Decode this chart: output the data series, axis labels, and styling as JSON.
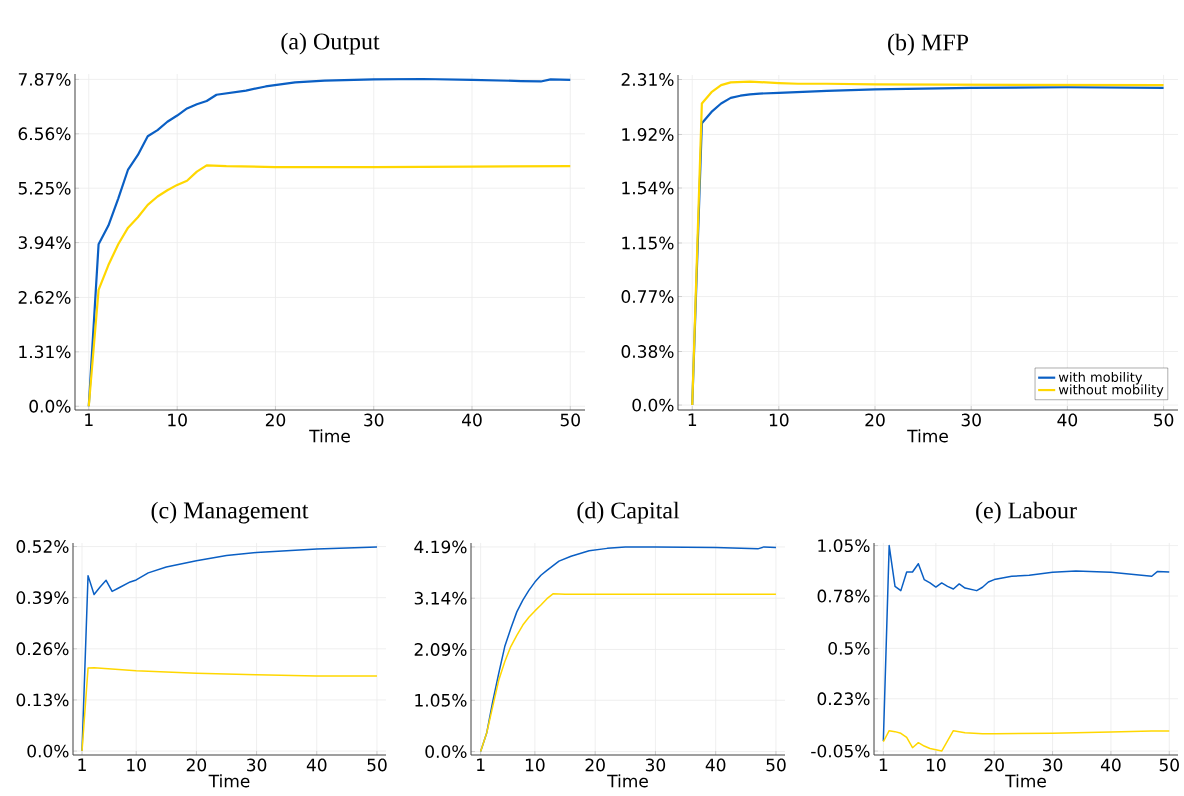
{
  "chart_data": [
    {
      "type": "line",
      "title": "(a) Output",
      "xlabel": "Time",
      "grid": true,
      "legend": false,
      "marker": "none",
      "xlim": [
        -0.4,
        51.5
      ],
      "xticks": [
        1,
        10,
        20,
        30,
        40,
        50
      ],
      "ylim": [
        -0.09,
        8.0
      ],
      "yticks": [
        {
          "value": 0,
          "label": "0.0%"
        },
        {
          "value": 1.31,
          "label": "1.31%"
        },
        {
          "value": 2.62,
          "label": "2.62%"
        },
        {
          "value": 3.94,
          "label": "3.94%"
        },
        {
          "value": 5.25,
          "label": "5.25%"
        },
        {
          "value": 6.56,
          "label": "6.56%"
        },
        {
          "value": 7.87,
          "label": "7.87%"
        }
      ],
      "series": [
        {
          "color": "#0a5fc4",
          "x": [
            1,
            2,
            3,
            4,
            5,
            6,
            7,
            8,
            9,
            10,
            11,
            12,
            13,
            14,
            17,
            19,
            22,
            25,
            30,
            35,
            40,
            45,
            47,
            48,
            50
          ],
          "values": [
            0,
            3.9,
            4.35,
            5.0,
            5.7,
            6.05,
            6.5,
            6.65,
            6.85,
            7.0,
            7.17,
            7.27,
            7.35,
            7.5,
            7.6,
            7.7,
            7.8,
            7.84,
            7.87,
            7.88,
            7.86,
            7.83,
            7.82,
            7.87,
            7.86
          ]
        },
        {
          "color": "#ffd700",
          "x": [
            1,
            2,
            3,
            4,
            5,
            6,
            7,
            8,
            9,
            10,
            11,
            12,
            13,
            15,
            20,
            30,
            40,
            50
          ],
          "values": [
            0,
            2.8,
            3.4,
            3.9,
            4.3,
            4.55,
            4.85,
            5.05,
            5.2,
            5.33,
            5.43,
            5.65,
            5.8,
            5.78,
            5.76,
            5.76,
            5.77,
            5.78
          ]
        }
      ]
    },
    {
      "type": "line",
      "title": "(b) MFP",
      "xlabel": "Time",
      "grid": true,
      "legend": "bottom right",
      "marker": "none",
      "xlim": [
        -0.48,
        51.5
      ],
      "xticks": [
        1,
        10,
        20,
        30,
        40,
        50
      ],
      "ylim": [
        -0.035,
        2.342
      ],
      "yticks": [
        {
          "value": 0,
          "label": "0.0%"
        },
        {
          "value": 0.38,
          "label": "0.38%"
        },
        {
          "value": 0.77,
          "label": "0.77%"
        },
        {
          "value": 1.15,
          "label": "1.15%"
        },
        {
          "value": 1.54,
          "label": "1.54%"
        },
        {
          "value": 1.92,
          "label": "1.92%"
        },
        {
          "value": 2.31,
          "label": "2.31%"
        }
      ],
      "series": [
        {
          "name": "with mobility",
          "color": "#0a5fc4",
          "x": [
            1,
            2,
            3,
            4,
            5,
            6,
            7,
            8,
            10,
            15,
            20,
            30,
            40,
            50
          ],
          "values": [
            0,
            2.0,
            2.08,
            2.14,
            2.18,
            2.195,
            2.205,
            2.21,
            2.215,
            2.23,
            2.24,
            2.25,
            2.255,
            2.25
          ]
        },
        {
          "name": "without mobility",
          "color": "#ffd700",
          "x": [
            1,
            2,
            3,
            4,
            5,
            7,
            10,
            12,
            15,
            20,
            50
          ],
          "values": [
            0,
            2.14,
            2.22,
            2.27,
            2.29,
            2.295,
            2.285,
            2.28,
            2.28,
            2.275,
            2.27
          ]
        }
      ]
    },
    {
      "type": "line",
      "title": "(c) Management",
      "xlabel": "Time",
      "grid": true,
      "legend": false,
      "marker": "none",
      "xlim": [
        -0.5,
        51.5
      ],
      "xticks": [
        1,
        10,
        20,
        30,
        40,
        50
      ],
      "ylim": [
        -0.01,
        0.529
      ],
      "yticks": [
        {
          "value": 0,
          "label": "0.0%"
        },
        {
          "value": 0.13,
          "label": "0.13%"
        },
        {
          "value": 0.26,
          "label": "0.26%"
        },
        {
          "value": 0.39,
          "label": "0.39%"
        },
        {
          "value": 0.52,
          "label": "0.52%"
        }
      ],
      "series": [
        {
          "color": "#0a5fc4",
          "x": [
            1,
            2,
            3,
            4,
            5,
            6,
            7,
            9,
            10,
            12,
            15,
            20,
            25,
            30,
            40,
            50
          ],
          "values": [
            0,
            0.446,
            0.398,
            0.417,
            0.434,
            0.406,
            0.414,
            0.43,
            0.435,
            0.453,
            0.468,
            0.484,
            0.497,
            0.505,
            0.514,
            0.519
          ]
        },
        {
          "color": "#ffd700",
          "x": [
            1,
            2,
            3,
            10,
            20,
            30,
            40,
            50
          ],
          "values": [
            0,
            0.211,
            0.212,
            0.204,
            0.198,
            0.194,
            0.191,
            0.191
          ]
        }
      ]
    },
    {
      "type": "line",
      "title": "(d) Capital",
      "xlabel": "Time",
      "grid": true,
      "legend": false,
      "marker": "none",
      "xlim": [
        -0.6,
        51.5
      ],
      "xticks": [
        1,
        10,
        20,
        30,
        40,
        50
      ],
      "ylim": [
        -0.07,
        4.27
      ],
      "yticks": [
        {
          "value": 0,
          "label": "0.0%"
        },
        {
          "value": 1.05,
          "label": "1.05%"
        },
        {
          "value": 2.09,
          "label": "2.09%"
        },
        {
          "value": 3.14,
          "label": "3.14%"
        },
        {
          "value": 4.19,
          "label": "4.19%"
        }
      ],
      "series": [
        {
          "color": "#0a5fc4",
          "x": [
            1,
            2,
            3,
            4,
            5,
            6,
            7,
            8,
            9,
            10,
            11,
            12,
            14,
            16,
            19,
            22,
            25,
            30,
            40,
            47,
            48,
            50
          ],
          "values": [
            0,
            0.38,
            1.02,
            1.6,
            2.15,
            2.52,
            2.86,
            3.1,
            3.3,
            3.47,
            3.61,
            3.71,
            3.9,
            4.0,
            4.11,
            4.16,
            4.19,
            4.19,
            4.18,
            4.15,
            4.19,
            4.18
          ]
        },
        {
          "color": "#ffd700",
          "x": [
            1,
            2,
            3,
            4,
            5,
            6,
            7,
            8,
            9,
            10,
            11,
            12,
            13,
            15,
            30,
            50
          ],
          "values": [
            0,
            0.38,
            0.92,
            1.46,
            1.84,
            2.15,
            2.38,
            2.59,
            2.75,
            2.88,
            3.0,
            3.13,
            3.23,
            3.22,
            3.22,
            3.22
          ]
        }
      ]
    },
    {
      "type": "line",
      "title": "(e) Labour",
      "xlabel": "Time",
      "grid": true,
      "legend": false,
      "marker": "none",
      "xlim": [
        -0.6,
        51.5
      ],
      "xticks": [
        1,
        10,
        20,
        30,
        40,
        50
      ],
      "ylim": [
        -0.071,
        1.064
      ],
      "yticks": [
        {
          "value": -0.05,
          "label": "-0.05%"
        },
        {
          "value": 0.23,
          "label": "0.23%"
        },
        {
          "value": 0.5,
          "label": "0.5%"
        },
        {
          "value": 0.78,
          "label": "0.78%"
        },
        {
          "value": 1.05,
          "label": "1.05%"
        }
      ],
      "series": [
        {
          "color": "#0a5fc4",
          "x": [
            1,
            2,
            3,
            4,
            5,
            6,
            7,
            8,
            9,
            10,
            11,
            12,
            13,
            14,
            15,
            17,
            18,
            19,
            20,
            23,
            26,
            30,
            34,
            40,
            47,
            48,
            50
          ],
          "values": [
            0.004,
            1.05,
            0.832,
            0.809,
            0.909,
            0.909,
            0.953,
            0.868,
            0.85,
            0.828,
            0.85,
            0.832,
            0.818,
            0.845,
            0.823,
            0.809,
            0.827,
            0.855,
            0.868,
            0.886,
            0.891,
            0.907,
            0.914,
            0.907,
            0.886,
            0.912,
            0.909
          ]
        },
        {
          "color": "#ffd700",
          "x": [
            1,
            2,
            3,
            4,
            5,
            6,
            7,
            8,
            9,
            11,
            13,
            15,
            18,
            20,
            30,
            40,
            47,
            50
          ],
          "values": [
            0.0,
            0.059,
            0.054,
            0.045,
            0.023,
            -0.032,
            -0.005,
            -0.023,
            -0.036,
            -0.05,
            0.059,
            0.048,
            0.043,
            0.043,
            0.045,
            0.052,
            0.057,
            0.057
          ]
        }
      ]
    }
  ]
}
